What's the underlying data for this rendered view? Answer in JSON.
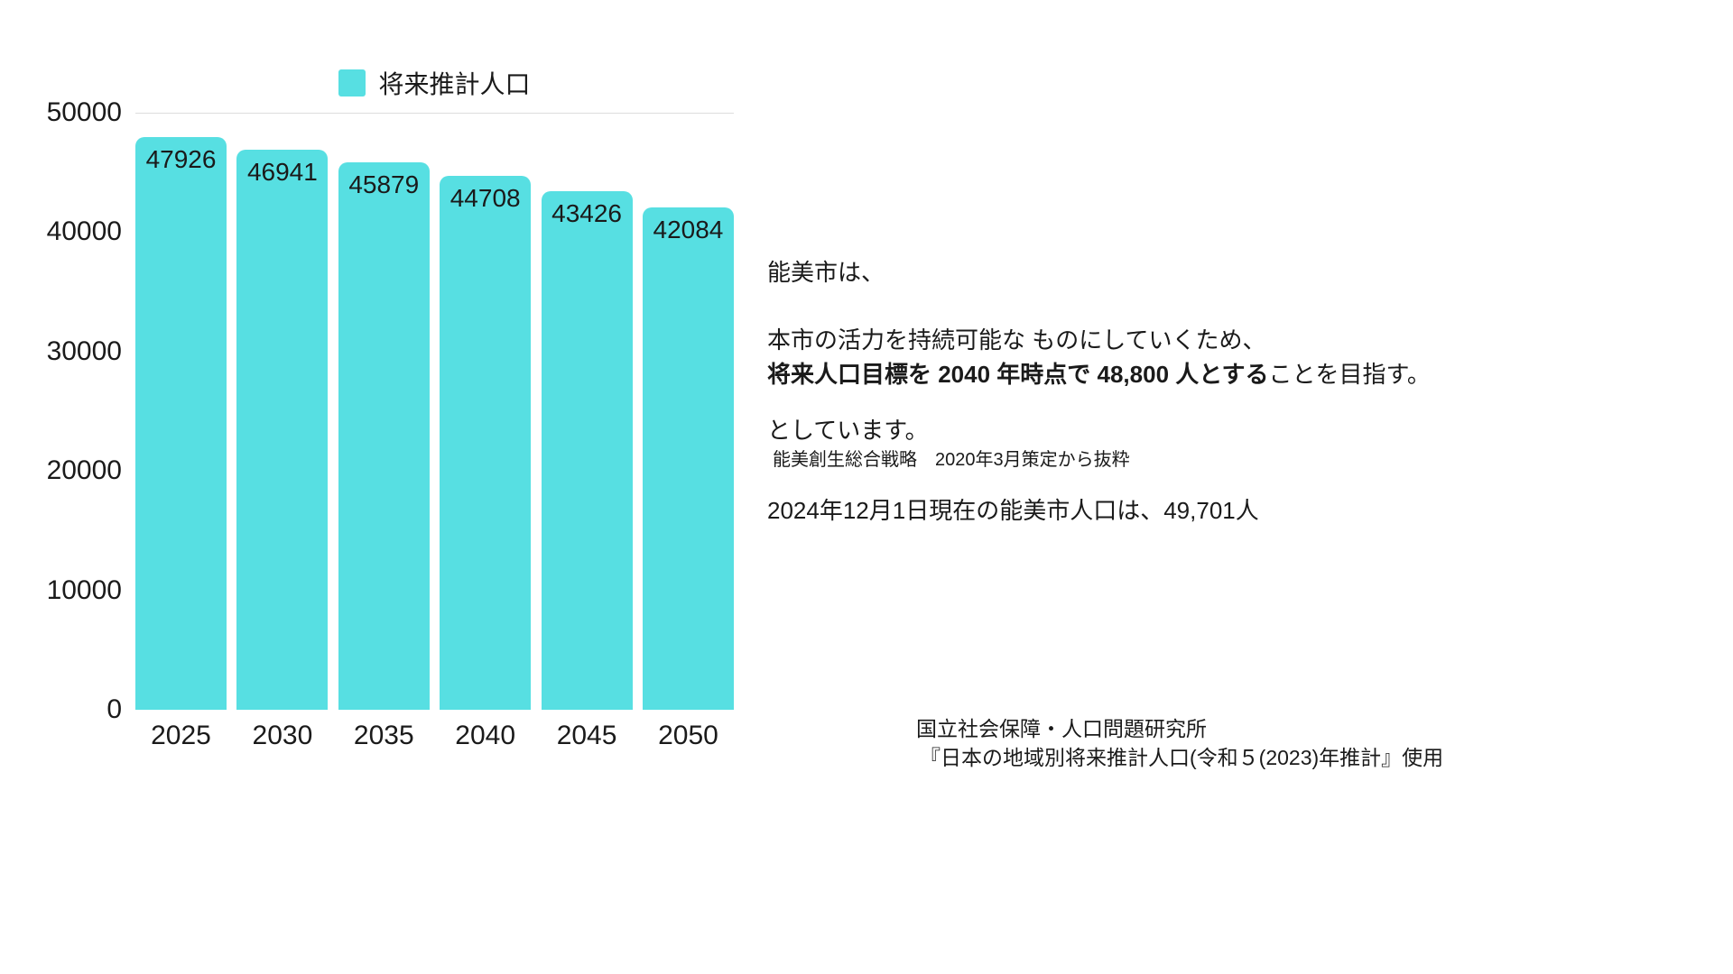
{
  "chart": {
    "bar_color": "#57dfe2",
    "legend_label": "将来推計人口"
  },
  "chart_data": {
    "type": "bar",
    "title": "",
    "series_name": "将来推計人口",
    "categories": [
      "2025",
      "2030",
      "2035",
      "2040",
      "2045",
      "2050"
    ],
    "values": [
      47926,
      46941,
      45879,
      44708,
      43426,
      42084
    ],
    "xlabel": "",
    "ylabel": "",
    "ylim": [
      0,
      50000
    ],
    "yticks": [
      0,
      10000,
      20000,
      30000,
      40000,
      50000
    ],
    "legend_position": "top",
    "grid": "top-gridline-only",
    "bar_labels_visible": true
  },
  "annotation": {
    "line1": "能美市は、",
    "line2": "本市の活力を持続可能な ものにしていくため、",
    "line3_bold": "将来人口目標を 2040 年時点で 48,800 人とする",
    "line3_rest": "ことを目指す。",
    "line4": "としています。",
    "line5": "能美創生総合戦略　2020年3月策定から抜粋",
    "line6": "2024年12月1日現在の能美市人口は、49,701人"
  },
  "source": {
    "line1": "国立社会保障・人口問題研究所",
    "line2": "『日本の地域別将来推計人口(令和５(2023)年推計』使用"
  }
}
